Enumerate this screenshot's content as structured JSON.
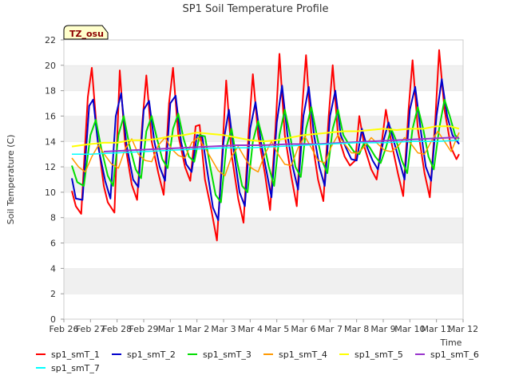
{
  "chart_data": {
    "type": "line",
    "title": "SP1 Soil Temperature Profile",
    "xlabel": "Time",
    "ylabel": "Soil Temperature (C)",
    "ylim": [
      0,
      22
    ],
    "yticks": [
      0,
      2,
      4,
      6,
      8,
      10,
      12,
      14,
      16,
      18,
      20,
      22
    ],
    "xlim": [
      0,
      15
    ],
    "xtick_labels": [
      "Feb 26",
      "Feb 27",
      "Feb 28",
      "Feb 29",
      "Mar 1",
      "Mar 2",
      "Mar 3",
      "Mar 4",
      "Mar 5",
      "Mar 6",
      "Mar 7",
      "Mar 8",
      "Mar 9",
      "Mar 10",
      "Mar 11",
      "Mar 12"
    ],
    "x_units": "days since Feb 26",
    "grid": "horizontal bands",
    "legend_position": "bottom",
    "annotation": "TZ_osu",
    "series": [
      {
        "name": "sp1_smT_1",
        "color": "#ff0000",
        "width": 2,
        "x": [
          0.3,
          0.45,
          0.65,
          0.9,
          1.05,
          1.25,
          1.5,
          1.65,
          1.9,
          2.1,
          2.3,
          2.55,
          2.75,
          2.95,
          3.1,
          3.3,
          3.55,
          3.75,
          3.95,
          4.1,
          4.3,
          4.55,
          4.75,
          4.95,
          5.1,
          5.3,
          5.55,
          5.75,
          5.95,
          6.1,
          6.3,
          6.55,
          6.75,
          6.95,
          7.1,
          7.3,
          7.55,
          7.75,
          7.95,
          8.1,
          8.3,
          8.55,
          8.75,
          8.95,
          9.1,
          9.3,
          9.55,
          9.75,
          9.95,
          10.1,
          10.3,
          10.55,
          10.75,
          10.95,
          11.1,
          11.3,
          11.55,
          11.75,
          11.95,
          12.1,
          12.3,
          12.55,
          12.75,
          12.95,
          13.1,
          13.3,
          13.55,
          13.75,
          13.95,
          14.1,
          14.3,
          14.55,
          14.75,
          14.85
        ],
        "y": [
          10.1,
          8.9,
          8.3,
          17.5,
          19.8,
          14.5,
          10.5,
          9.2,
          8.4,
          19.6,
          13.8,
          10.6,
          9.4,
          15.5,
          19.2,
          14.0,
          11.5,
          9.8,
          17.0,
          19.8,
          14.5,
          12.0,
          10.9,
          15.2,
          15.3,
          11.0,
          8.5,
          6.2,
          13.0,
          18.8,
          13.0,
          9.5,
          7.6,
          15.0,
          19.3,
          14.5,
          11.5,
          8.6,
          15.0,
          20.9,
          14.5,
          11.2,
          8.9,
          16.5,
          20.8,
          14.5,
          11.0,
          9.3,
          16.0,
          20.0,
          14.5,
          12.8,
          12.1,
          12.5,
          16.0,
          13.5,
          11.8,
          11.0,
          14.0,
          16.5,
          14.0,
          11.5,
          9.7,
          16.5,
          20.4,
          15.0,
          11.5,
          9.6,
          15.5,
          21.2,
          16.5,
          13.5,
          12.6,
          13.0
        ]
      },
      {
        "name": "sp1_smT_2",
        "color": "#0000cc",
        "width": 2,
        "x": [
          0.3,
          0.45,
          0.7,
          0.95,
          1.1,
          1.3,
          1.55,
          1.75,
          1.95,
          2.15,
          2.35,
          2.6,
          2.8,
          3.0,
          3.2,
          3.4,
          3.6,
          3.8,
          4.0,
          4.2,
          4.4,
          4.6,
          4.8,
          5.0,
          5.2,
          5.4,
          5.6,
          5.8,
          6.0,
          6.2,
          6.4,
          6.6,
          6.8,
          7.0,
          7.2,
          7.4,
          7.6,
          7.8,
          8.0,
          8.2,
          8.4,
          8.6,
          8.8,
          9.0,
          9.2,
          9.4,
          9.6,
          9.8,
          10.0,
          10.2,
          10.4,
          10.6,
          10.8,
          11.0,
          11.2,
          11.4,
          11.6,
          11.8,
          12.0,
          12.2,
          12.4,
          12.6,
          12.8,
          13.0,
          13.2,
          13.4,
          13.6,
          13.8,
          14.0,
          14.2,
          14.4,
          14.6,
          14.85
        ],
        "y": [
          11.1,
          9.5,
          9.4,
          16.8,
          17.3,
          13.5,
          10.9,
          9.5,
          16.0,
          17.8,
          13.8,
          11.0,
          10.4,
          16.5,
          17.2,
          14.0,
          12.0,
          10.9,
          17.0,
          17.6,
          14.0,
          12.2,
          11.6,
          14.5,
          14.4,
          11.5,
          8.8,
          7.8,
          14.0,
          16.5,
          13.0,
          10.0,
          8.9,
          15.0,
          17.1,
          14.0,
          11.8,
          9.6,
          15.5,
          18.4,
          14.5,
          12.0,
          10.2,
          16.0,
          18.3,
          14.5,
          12.0,
          10.5,
          16.0,
          18.0,
          14.5,
          13.5,
          12.6,
          12.5,
          15.0,
          13.5,
          12.5,
          11.8,
          14.0,
          15.5,
          14.0,
          12.5,
          11.0,
          16.5,
          18.3,
          15.0,
          12.0,
          10.9,
          16.0,
          18.9,
          16.0,
          14.5,
          13.8
        ]
      },
      {
        "name": "sp1_smT_3",
        "color": "#00dd00",
        "width": 2,
        "x": [
          0.3,
          0.5,
          0.75,
          1.0,
          1.2,
          1.4,
          1.65,
          1.85,
          2.05,
          2.25,
          2.45,
          2.7,
          2.9,
          3.1,
          3.3,
          3.5,
          3.7,
          3.9,
          4.1,
          4.3,
          4.5,
          4.7,
          4.9,
          5.1,
          5.3,
          5.5,
          5.7,
          5.9,
          6.1,
          6.3,
          6.5,
          6.7,
          6.9,
          7.1,
          7.3,
          7.5,
          7.7,
          7.9,
          8.1,
          8.3,
          8.5,
          8.7,
          8.9,
          9.1,
          9.3,
          9.5,
          9.7,
          9.9,
          10.1,
          10.3,
          10.5,
          10.7,
          10.9,
          11.1,
          11.3,
          11.5,
          11.7,
          11.9,
          12.1,
          12.3,
          12.5,
          12.7,
          12.9,
          13.1,
          13.3,
          13.5,
          13.7,
          13.9,
          14.1,
          14.3,
          14.5,
          14.7,
          14.85
        ],
        "y": [
          12.1,
          10.8,
          10.5,
          14.5,
          15.7,
          13.5,
          11.3,
          10.5,
          14.5,
          16.0,
          13.8,
          11.8,
          11.1,
          14.8,
          16.0,
          14.2,
          12.6,
          11.9,
          15.0,
          16.2,
          14.2,
          12.8,
          12.4,
          14.5,
          14.4,
          12.0,
          9.8,
          9.2,
          13.5,
          15.0,
          12.5,
          10.5,
          10.0,
          14.0,
          15.6,
          14.0,
          12.0,
          10.5,
          14.5,
          16.5,
          14.5,
          12.0,
          11.2,
          15.0,
          16.7,
          14.5,
          12.5,
          11.5,
          15.0,
          16.5,
          14.5,
          13.8,
          13.2,
          13.0,
          14.0,
          13.5,
          12.8,
          12.3,
          13.5,
          15.0,
          14.0,
          12.5,
          11.5,
          15.0,
          16.7,
          15.0,
          12.8,
          11.8,
          15.0,
          17.3,
          16.0,
          14.5,
          14.2
        ]
      },
      {
        "name": "sp1_smT_4",
        "color": "#ff9900",
        "width": 1.5,
        "x": [
          0.3,
          0.55,
          0.8,
          1.05,
          1.3,
          1.55,
          1.8,
          2.05,
          2.3,
          2.55,
          2.8,
          3.05,
          3.3,
          3.55,
          3.8,
          4.05,
          4.3,
          4.55,
          4.8,
          5.05,
          5.3,
          5.55,
          5.8,
          6.05,
          6.3,
          6.55,
          6.8,
          7.05,
          7.3,
          7.55,
          7.8,
          8.05,
          8.3,
          8.55,
          8.8,
          9.05,
          9.3,
          9.55,
          9.8,
          10.05,
          10.3,
          10.55,
          10.8,
          11.05,
          11.3,
          11.55,
          11.8,
          12.05,
          12.3,
          12.55,
          12.8,
          13.05,
          13.3,
          13.55,
          13.8,
          14.05,
          14.3,
          14.55,
          14.85
        ],
        "y": [
          12.7,
          12.0,
          11.6,
          12.8,
          13.7,
          12.9,
          12.2,
          11.9,
          13.4,
          14.2,
          13.0,
          12.5,
          12.4,
          13.7,
          14.3,
          13.4,
          12.9,
          12.7,
          13.9,
          14.3,
          13.5,
          12.6,
          11.7,
          11.3,
          12.8,
          13.6,
          12.7,
          11.9,
          11.6,
          13.0,
          14.0,
          13.0,
          12.2,
          12.1,
          13.5,
          14.4,
          13.5,
          12.5,
          12.3,
          13.6,
          14.5,
          13.8,
          13.1,
          13.1,
          13.6,
          14.3,
          13.8,
          13.3,
          13.2,
          13.6,
          14.3,
          13.8,
          13.1,
          13.0,
          14.0,
          14.8,
          14.0,
          13.2,
          14.7
        ]
      },
      {
        "name": "sp1_smT_5",
        "color": "#ffff00",
        "width": 2,
        "x": [
          0.3,
          1.0,
          1.5,
          2.0,
          2.5,
          3.0,
          3.5,
          4.0,
          4.5,
          5.0,
          5.5,
          6.0,
          6.5,
          7.0,
          7.5,
          8.0,
          8.5,
          9.0,
          9.5,
          10.0,
          10.5,
          11.0,
          11.5,
          12.0,
          12.5,
          13.0,
          13.5,
          14.0,
          14.5,
          14.85
        ],
        "y": [
          13.6,
          13.8,
          13.9,
          13.9,
          14.1,
          14.1,
          14.2,
          14.4,
          14.5,
          14.7,
          14.6,
          14.5,
          14.3,
          14.1,
          14.0,
          14.1,
          14.3,
          14.5,
          14.6,
          14.7,
          14.8,
          14.8,
          14.9,
          15.0,
          14.9,
          15.0,
          15.0,
          15.2,
          15.2,
          15.0
        ]
      },
      {
        "name": "sp1_smT_6",
        "color": "#9933cc",
        "width": 2,
        "x": [
          1.5,
          2.5,
          3.5,
          4.5,
          5.5,
          6.5,
          7.5,
          8.5,
          9.5,
          10.5,
          11.5,
          12.5,
          13.5,
          14.5,
          14.85
        ],
        "y": [
          13.2,
          13.3,
          13.4,
          13.5,
          13.6,
          13.7,
          13.7,
          13.8,
          13.8,
          13.9,
          14.0,
          14.1,
          14.2,
          14.3,
          14.3
        ]
      },
      {
        "name": "sp1_smT_7",
        "color": "#00ffff",
        "width": 1.5,
        "x": [
          0.3,
          1.0,
          2.0,
          3.0,
          4.0,
          5.0,
          6.0,
          7.0,
          8.0,
          9.0,
          10.0,
          11.0,
          12.0,
          13.0,
          14.0,
          14.85
        ],
        "y": [
          13.0,
          13.0,
          13.1,
          13.2,
          13.3,
          13.4,
          13.5,
          13.5,
          13.6,
          13.7,
          13.8,
          13.9,
          13.9,
          14.0,
          14.0,
          14.1
        ]
      }
    ]
  }
}
